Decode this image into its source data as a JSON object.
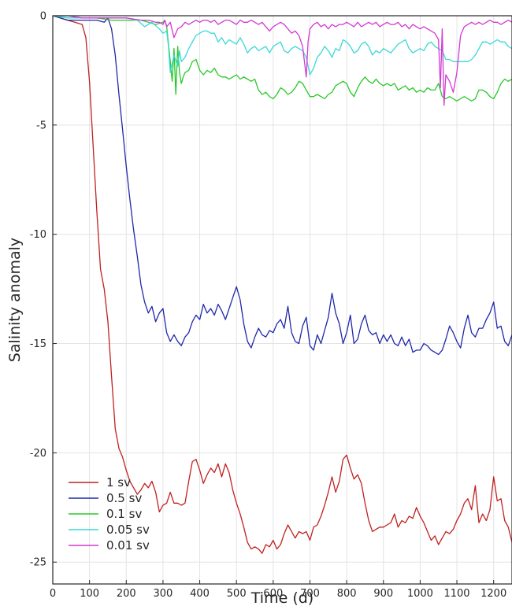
{
  "chart_data": {
    "type": "line",
    "xlabel": "Time (d)",
    "ylabel": "Salinity anomaly",
    "xlim": [
      0,
      1250
    ],
    "ylim": [
      -26,
      0
    ],
    "xticks": [
      "0",
      "100",
      "200",
      "300",
      "400",
      "500",
      "600",
      "700",
      "800",
      "900",
      "1000",
      "1100",
      "1200"
    ],
    "yticks": [
      "0",
      "-5",
      "-10",
      "-15",
      "-20",
      "-25"
    ],
    "grid": true,
    "legend_position": "bottom-left",
    "series": [
      {
        "name": "1 sv",
        "color": "#c0211f",
        "x": [
          0,
          20,
          40,
          60,
          80,
          90,
          100,
          110,
          120,
          130,
          140,
          150,
          160,
          170,
          180,
          190,
          200,
          210,
          220,
          230,
          240,
          250,
          260,
          270,
          280,
          290,
          300,
          310,
          320,
          330,
          340,
          350,
          360,
          370,
          380,
          390,
          400,
          410,
          420,
          430,
          440,
          450,
          460,
          470,
          480,
          490,
          500,
          510,
          520,
          530,
          540,
          550,
          560,
          570,
          580,
          590,
          600,
          610,
          620,
          630,
          640,
          650,
          660,
          670,
          680,
          690,
          700,
          710,
          720,
          730,
          740,
          750,
          760,
          770,
          780,
          790,
          800,
          810,
          820,
          830,
          840,
          850,
          860,
          870,
          880,
          890,
          900,
          910,
          920,
          930,
          940,
          950,
          960,
          970,
          980,
          990,
          1000,
          1010,
          1020,
          1030,
          1040,
          1050,
          1060,
          1070,
          1080,
          1090,
          1100,
          1110,
          1120,
          1130,
          1140,
          1150,
          1160,
          1170,
          1180,
          1190,
          1200,
          1210,
          1220,
          1230,
          1240,
          1250
        ],
        "values": [
          0,
          -0.1,
          -0.2,
          -0.3,
          -0.4,
          -1.0,
          -3.0,
          -6.0,
          -9.0,
          -11.6,
          -12.5,
          -14.0,
          -16.5,
          -18.9,
          -19.8,
          -20.2,
          -20.8,
          -21.3,
          -21.6,
          -21.9,
          -21.7,
          -21.4,
          -21.6,
          -21.3,
          -21.8,
          -22.7,
          -22.4,
          -22.3,
          -21.8,
          -22.3,
          -22.3,
          -22.4,
          -22.3,
          -21.3,
          -20.4,
          -20.3,
          -20.8,
          -21.4,
          -21.0,
          -20.7,
          -20.9,
          -20.5,
          -21.1,
          -20.5,
          -20.9,
          -21.7,
          -22.3,
          -22.8,
          -23.4,
          -24.1,
          -24.4,
          -24.3,
          -24.4,
          -24.6,
          -24.2,
          -24.3,
          -24.0,
          -24.4,
          -24.2,
          -23.7,
          -23.3,
          -23.6,
          -23.9,
          -23.6,
          -23.7,
          -23.6,
          -24.0,
          -23.4,
          -23.3,
          -22.9,
          -22.4,
          -21.8,
          -21.1,
          -21.8,
          -21.3,
          -20.3,
          -20.1,
          -20.7,
          -21.2,
          -21.0,
          -21.4,
          -22.3,
          -23.1,
          -23.6,
          -23.5,
          -23.4,
          -23.4,
          -23.3,
          -23.2,
          -22.8,
          -23.4,
          -23.1,
          -23.2,
          -22.9,
          -23.0,
          -22.5,
          -22.9,
          -23.2,
          -23.6,
          -24.0,
          -23.8,
          -24.2,
          -23.9,
          -23.6,
          -23.7,
          -23.5,
          -23.1,
          -22.8,
          -22.3,
          -22.1,
          -22.6,
          -21.5,
          -23.2,
          -22.8,
          -23.1,
          -22.6,
          -21.1,
          -22.2,
          -22.1,
          -23.1,
          -23.4,
          -24.1
        ]
      },
      {
        "name": "0.5 sv",
        "color": "#1f28a8",
        "x": [
          0,
          20,
          40,
          60,
          80,
          100,
          120,
          140,
          150,
          160,
          170,
          180,
          190,
          200,
          210,
          220,
          230,
          240,
          250,
          260,
          270,
          280,
          290,
          300,
          310,
          320,
          330,
          340,
          350,
          360,
          370,
          380,
          390,
          400,
          410,
          420,
          430,
          440,
          450,
          460,
          470,
          480,
          490,
          500,
          510,
          520,
          530,
          540,
          550,
          560,
          570,
          580,
          590,
          600,
          610,
          620,
          630,
          640,
          650,
          660,
          670,
          680,
          690,
          700,
          710,
          720,
          730,
          740,
          750,
          760,
          770,
          780,
          790,
          800,
          810,
          820,
          830,
          840,
          850,
          860,
          870,
          880,
          890,
          900,
          910,
          920,
          930,
          940,
          950,
          960,
          970,
          980,
          990,
          1000,
          1010,
          1020,
          1030,
          1040,
          1050,
          1060,
          1070,
          1080,
          1090,
          1100,
          1110,
          1120,
          1130,
          1140,
          1150,
          1160,
          1170,
          1180,
          1190,
          1200,
          1210,
          1220,
          1230,
          1240,
          1250
        ],
        "values": [
          0,
          -0.1,
          -0.2,
          -0.2,
          -0.2,
          -0.2,
          -0.2,
          -0.3,
          -0.1,
          -0.6,
          -1.8,
          -3.6,
          -5.2,
          -6.9,
          -8.4,
          -9.8,
          -11.0,
          -12.3,
          -13.1,
          -13.6,
          -13.3,
          -14.0,
          -13.6,
          -13.4,
          -14.5,
          -14.9,
          -14.6,
          -14.9,
          -15.1,
          -14.7,
          -14.5,
          -14.0,
          -13.7,
          -13.9,
          -13.2,
          -13.6,
          -13.4,
          -13.7,
          -13.2,
          -13.5,
          -13.9,
          -13.4,
          -12.9,
          -12.4,
          -13.0,
          -14.1,
          -14.9,
          -15.2,
          -14.7,
          -14.3,
          -14.6,
          -14.7,
          -14.4,
          -14.5,
          -14.1,
          -13.9,
          -14.3,
          -13.3,
          -14.5,
          -14.9,
          -15.0,
          -14.2,
          -13.8,
          -15.1,
          -15.3,
          -14.6,
          -15.0,
          -14.4,
          -13.8,
          -12.7,
          -13.6,
          -14.1,
          -15.0,
          -14.5,
          -13.7,
          -15.0,
          -14.8,
          -14.1,
          -13.7,
          -14.4,
          -14.6,
          -14.5,
          -15.0,
          -14.6,
          -14.9,
          -14.6,
          -15.0,
          -15.1,
          -14.7,
          -15.1,
          -14.8,
          -15.4,
          -15.3,
          -15.3,
          -15.0,
          -15.1,
          -15.3,
          -15.4,
          -15.5,
          -15.3,
          -14.8,
          -14.2,
          -14.5,
          -14.9,
          -15.2,
          -14.3,
          -13.7,
          -14.5,
          -14.7,
          -14.3,
          -14.3,
          -13.9,
          -13.6,
          -13.1,
          -14.3,
          -14.2,
          -14.9,
          -15.1,
          -14.6
        ],
        "extra_note": null
      },
      {
        "name": "0.1 sv",
        "color": "#28c828",
        "x": [
          0,
          40,
          80,
          120,
          160,
          200,
          240,
          260,
          280,
          300,
          305,
          310,
          320,
          325,
          330,
          335,
          340,
          345,
          350,
          355,
          360,
          370,
          380,
          390,
          400,
          410,
          420,
          430,
          440,
          450,
          460,
          470,
          480,
          490,
          500,
          510,
          520,
          530,
          540,
          550,
          560,
          570,
          580,
          590,
          600,
          610,
          620,
          630,
          640,
          650,
          660,
          670,
          680,
          690,
          700,
          710,
          720,
          730,
          740,
          750,
          760,
          770,
          780,
          790,
          800,
          810,
          820,
          830,
          840,
          850,
          860,
          870,
          880,
          890,
          900,
          910,
          920,
          930,
          940,
          950,
          960,
          970,
          980,
          990,
          1000,
          1010,
          1020,
          1030,
          1040,
          1050,
          1060,
          1070,
          1080,
          1090,
          1100,
          1110,
          1120,
          1130,
          1140,
          1150,
          1160,
          1170,
          1180,
          1190,
          1200,
          1210,
          1220,
          1230,
          1240,
          1250
        ],
        "values": [
          0,
          -0.1,
          -0.1,
          -0.1,
          -0.2,
          -0.2,
          -0.2,
          -0.3,
          -0.4,
          -0.3,
          -0.2,
          -0.5,
          -2.1,
          -3.0,
          -1.5,
          -3.6,
          -1.4,
          -2.6,
          -3.1,
          -2.8,
          -2.6,
          -2.5,
          -2.1,
          -2.0,
          -2.5,
          -2.7,
          -2.5,
          -2.6,
          -2.4,
          -2.7,
          -2.8,
          -2.8,
          -2.9,
          -2.8,
          -2.7,
          -2.9,
          -2.8,
          -2.9,
          -3.0,
          -2.9,
          -3.4,
          -3.6,
          -3.5,
          -3.7,
          -3.8,
          -3.6,
          -3.3,
          -3.4,
          -3.6,
          -3.5,
          -3.3,
          -3.0,
          -3.1,
          -3.4,
          -3.7,
          -3.7,
          -3.6,
          -3.7,
          -3.8,
          -3.6,
          -3.5,
          -3.2,
          -3.1,
          -3.0,
          -3.1,
          -3.5,
          -3.7,
          -3.3,
          -3.0,
          -2.8,
          -3.0,
          -3.1,
          -2.9,
          -3.1,
          -3.2,
          -3.1,
          -3.2,
          -3.1,
          -3.4,
          -3.3,
          -3.2,
          -3.4,
          -3.3,
          -3.5,
          -3.4,
          -3.5,
          -3.3,
          -3.4,
          -3.4,
          -3.1,
          -3.7,
          -3.8,
          -3.7,
          -3.8,
          -3.9,
          -3.8,
          -3.7,
          -3.8,
          -3.9,
          -3.8,
          -3.4,
          -3.4,
          -3.5,
          -3.7,
          -3.8,
          -3.5,
          -3.1,
          -2.9,
          -3.0,
          -2.9
        ],
        "extra_note": null
      },
      {
        "name": "0.05 sv",
        "color": "#3ad8d8",
        "x": [
          0,
          40,
          80,
          120,
          160,
          200,
          230,
          250,
          270,
          290,
          300,
          310,
          315,
          320,
          330,
          340,
          345,
          350,
          360,
          370,
          380,
          390,
          400,
          410,
          420,
          430,
          440,
          450,
          460,
          470,
          480,
          490,
          500,
          510,
          520,
          530,
          540,
          550,
          560,
          570,
          580,
          590,
          600,
          610,
          620,
          630,
          640,
          650,
          660,
          670,
          680,
          690,
          700,
          710,
          720,
          730,
          740,
          750,
          760,
          770,
          780,
          790,
          800,
          810,
          820,
          830,
          840,
          850,
          860,
          870,
          880,
          890,
          900,
          910,
          920,
          930,
          940,
          950,
          960,
          970,
          980,
          990,
          1000,
          1010,
          1020,
          1030,
          1040,
          1050,
          1060,
          1070,
          1080,
          1090,
          1100,
          1110,
          1120,
          1130,
          1140,
          1150,
          1160,
          1170,
          1180,
          1190,
          1200,
          1210,
          1220,
          1230,
          1240,
          1250
        ],
        "values": [
          0,
          -0.1,
          -0.1,
          -0.1,
          -0.1,
          -0.1,
          -0.2,
          -0.5,
          -0.3,
          -0.6,
          -0.8,
          -0.7,
          -1.4,
          -2.6,
          -1.8,
          -2.3,
          -1.6,
          -2.1,
          -1.9,
          -1.5,
          -1.2,
          -0.9,
          -0.8,
          -0.7,
          -0.7,
          -0.8,
          -0.8,
          -1.2,
          -1.0,
          -1.3,
          -1.1,
          -1.2,
          -1.3,
          -1.0,
          -1.3,
          -1.7,
          -1.5,
          -1.4,
          -1.6,
          -1.5,
          -1.4,
          -1.7,
          -1.4,
          -1.3,
          -1.2,
          -1.6,
          -1.7,
          -1.5,
          -1.4,
          -1.5,
          -1.6,
          -1.9,
          -2.7,
          -2.4,
          -1.9,
          -1.7,
          -1.4,
          -1.6,
          -1.9,
          -1.5,
          -1.6,
          -1.1,
          -1.2,
          -1.4,
          -1.7,
          -1.6,
          -1.3,
          -1.2,
          -1.4,
          -1.8,
          -1.6,
          -1.7,
          -1.5,
          -1.6,
          -1.7,
          -1.5,
          -1.3,
          -1.2,
          -1.1,
          -1.5,
          -1.7,
          -1.6,
          -1.5,
          -1.6,
          -1.3,
          -1.2,
          -1.4,
          -1.5,
          -1.6,
          -2.0,
          -2.0,
          -2.1,
          -2.1,
          -2.1,
          -2.1,
          -2.1,
          -2.0,
          -1.8,
          -1.5,
          -1.2,
          -1.2,
          -1.3,
          -1.2,
          -1.1,
          -1.2,
          -1.2,
          -1.4,
          -1.5
        ],
        "extra_note": null
      },
      {
        "name": "0.01 sv",
        "color": "#d23ad2",
        "x": [
          0,
          40,
          80,
          120,
          160,
          200,
          240,
          260,
          280,
          290,
          300,
          305,
          310,
          320,
          330,
          340,
          350,
          360,
          370,
          380,
          390,
          400,
          410,
          420,
          430,
          440,
          450,
          460,
          470,
          480,
          490,
          500,
          510,
          520,
          530,
          540,
          550,
          560,
          570,
          580,
          590,
          600,
          610,
          620,
          630,
          640,
          650,
          660,
          670,
          680,
          690,
          695,
          700,
          710,
          720,
          730,
          740,
          750,
          760,
          770,
          780,
          790,
          800,
          810,
          820,
          830,
          840,
          850,
          860,
          870,
          880,
          890,
          900,
          910,
          920,
          930,
          940,
          950,
          960,
          970,
          980,
          990,
          1000,
          1010,
          1020,
          1030,
          1040,
          1050,
          1055,
          1060,
          1065,
          1070,
          1080,
          1090,
          1100,
          1110,
          1120,
          1130,
          1140,
          1150,
          1160,
          1170,
          1180,
          1190,
          1200,
          1210,
          1220,
          1230,
          1240,
          1250
        ],
        "values": [
          0,
          0,
          -0.1,
          -0.1,
          -0.1,
          -0.1,
          -0.2,
          -0.2,
          -0.3,
          -0.3,
          -0.4,
          -0.2,
          -0.5,
          -0.3,
          -1.0,
          -0.6,
          -0.5,
          -0.3,
          -0.4,
          -0.3,
          -0.2,
          -0.3,
          -0.2,
          -0.2,
          -0.3,
          -0.2,
          -0.4,
          -0.3,
          -0.2,
          -0.2,
          -0.3,
          -0.4,
          -0.2,
          -0.3,
          -0.3,
          -0.2,
          -0.3,
          -0.4,
          -0.3,
          -0.5,
          -0.7,
          -0.5,
          -0.4,
          -0.3,
          -0.4,
          -0.6,
          -0.8,
          -0.7,
          -0.9,
          -1.4,
          -2.8,
          -1.2,
          -0.6,
          -0.4,
          -0.3,
          -0.5,
          -0.4,
          -0.6,
          -0.4,
          -0.5,
          -0.4,
          -0.4,
          -0.3,
          -0.4,
          -0.5,
          -0.3,
          -0.5,
          -0.4,
          -0.3,
          -0.4,
          -0.3,
          -0.5,
          -0.4,
          -0.3,
          -0.4,
          -0.4,
          -0.3,
          -0.5,
          -0.4,
          -0.6,
          -0.4,
          -0.5,
          -0.6,
          -0.5,
          -0.6,
          -0.7,
          -0.8,
          -1.1,
          -3.3,
          -0.6,
          -4.1,
          -2.7,
          -3.0,
          -3.5,
          -2.6,
          -0.9,
          -0.5,
          -0.4,
          -0.3,
          -0.4,
          -0.3,
          -0.4,
          -0.3,
          -0.2,
          -0.3,
          -0.3,
          -0.4,
          -0.3,
          -0.2,
          -0.3
        ],
        "extra_note": null
      }
    ]
  }
}
